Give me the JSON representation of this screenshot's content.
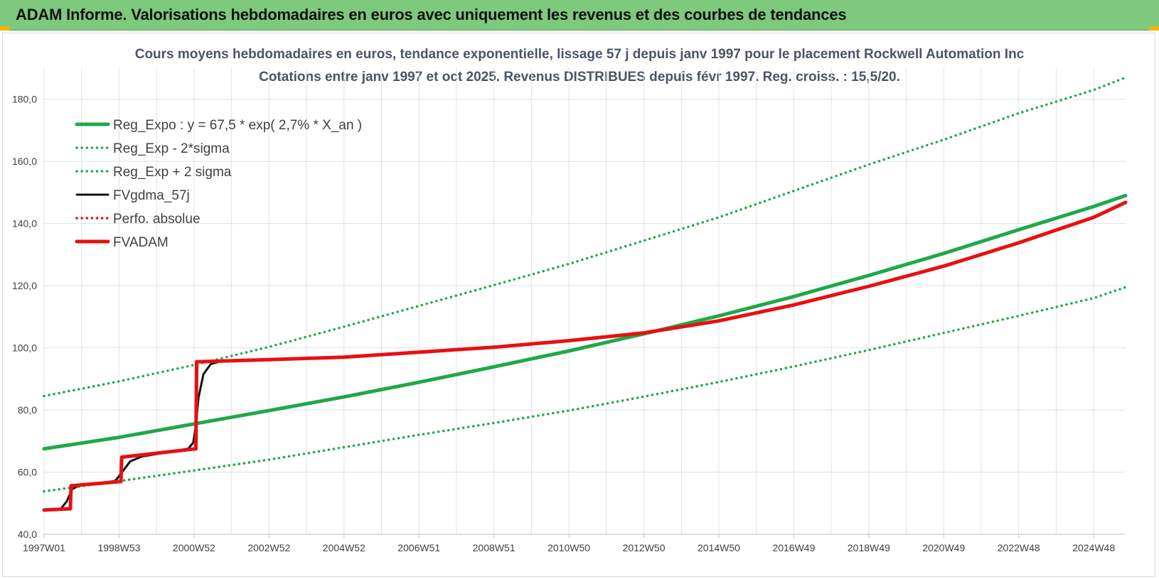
{
  "banner": {
    "title": "ADAM Informe. Valorisations hebdomadaires en euros avec uniquement les revenus et des courbes de tendances"
  },
  "colors": {
    "banner_bg": "#7dc97d",
    "trend_green": "#1fa84a",
    "black": "#111111",
    "red": "#e81010",
    "grid": "#dde3ea"
  },
  "chart_data": {
    "type": "line",
    "title": "Cours moyens hebdomadaires en euros, tendance exponentielle, lissage 57 j depuis janv 1997 pour le placement Rockwell Automation Inc",
    "subtitle": "Cotations entre janv 1997 et oct 2025. Revenus DISTRIBUES depuis févr 1997. Reg. croiss. : 15,5/20.",
    "xlabel": "",
    "ylabel": "",
    "ylim": [
      40,
      190
    ],
    "xlim": [
      1997.0,
      2025.85
    ],
    "yticks": [
      40,
      60,
      80,
      100,
      120,
      140,
      160,
      180
    ],
    "ytick_labels": [
      "40,0",
      "60,0",
      "80,0",
      "100,0",
      "120,0",
      "140,0",
      "160,0",
      "180,0"
    ],
    "xticks": [
      1997.0,
      1999.0,
      2001.0,
      2003.0,
      2005.0,
      2007.0,
      2009.0,
      2011.0,
      2013.0,
      2015.0,
      2017.0,
      2019.0,
      2021.0,
      2023.0,
      2025.0
    ],
    "xtick_labels": [
      "1997W01",
      "1998W53",
      "2000W52",
      "2002W52",
      "2004W52",
      "2006W51",
      "2008W51",
      "2010W50",
      "2012W50",
      "2014W50",
      "2016W49",
      "2018W49",
      "2020W49",
      "2022W48",
      "2024W48"
    ],
    "grid": true,
    "legend_position": "top-left",
    "series": [
      {
        "name": "Reg_Expo : y = 67,5 * exp( 2,7% *  X_an )",
        "style": "solid-thick",
        "color": "#1fa84a",
        "x": [
          1997.0,
          1999.0,
          2001.0,
          2003.0,
          2005.0,
          2007.0,
          2009.0,
          2011.0,
          2013.0,
          2015.0,
          2017.0,
          2019.0,
          2021.0,
          2023.0,
          2025.0,
          2025.85
        ],
        "y": [
          67.5,
          71.2,
          75.5,
          79.8,
          84.2,
          88.9,
          93.9,
          99.0,
          104.5,
          110.3,
          116.5,
          123.3,
          130.4,
          138.0,
          145.5,
          149.0
        ]
      },
      {
        "name": "Reg_Exp - 2*sigma",
        "style": "dotted",
        "color": "#1fa84a",
        "x": [
          1997.0,
          1999.0,
          2001.0,
          2003.0,
          2005.0,
          2007.0,
          2009.0,
          2011.0,
          2013.0,
          2015.0,
          2017.0,
          2019.0,
          2021.0,
          2023.0,
          2025.0,
          2025.85
        ],
        "y": [
          53.8,
          57.1,
          60.5,
          64.0,
          68.0,
          72.0,
          75.8,
          79.8,
          84.3,
          89.0,
          94.0,
          99.3,
          104.8,
          110.3,
          116.0,
          119.5
        ]
      },
      {
        "name": "Reg_Exp + 2 sigma",
        "style": "dotted",
        "color": "#1fa84a",
        "x": [
          1997.0,
          1999.0,
          2001.0,
          2003.0,
          2005.0,
          2007.0,
          2009.0,
          2011.0,
          2013.0,
          2015.0,
          2017.0,
          2019.0,
          2021.0,
          2023.0,
          2025.0,
          2025.85
        ],
        "y": [
          84.5,
          89.2,
          94.5,
          100.3,
          106.8,
          113.5,
          120.2,
          127.0,
          134.5,
          142.0,
          150.5,
          159.0,
          167.0,
          175.5,
          183.0,
          187.0
        ]
      },
      {
        "name": "FVgdma_57j",
        "style": "solid",
        "color": "#111111",
        "x": [
          1997.0,
          1997.45,
          1997.6,
          1997.75,
          1997.95,
          1998.5,
          1998.9,
          1999.05,
          1999.3,
          1999.6,
          2000.0,
          2000.5,
          2000.85,
          2000.98,
          2001.05,
          2001.12,
          2001.25,
          2001.45,
          2001.7,
          2002.0
        ],
        "y": [
          47.8,
          48.2,
          50.5,
          54.5,
          55.8,
          56.4,
          57.2,
          59.5,
          63.5,
          65.0,
          65.8,
          66.8,
          67.6,
          69.5,
          75.0,
          84.0,
          91.5,
          94.8,
          95.6,
          95.8
        ]
      },
      {
        "name": "Perfo. absolue",
        "style": "dotted",
        "color": "#e81010",
        "x": [
          1997.0,
          1997.7,
          1997.72,
          1999.05,
          1999.07,
          2001.05,
          2001.07,
          2003.0,
          2005.0,
          2007.0,
          2009.0,
          2011.0,
          2013.0,
          2015.0,
          2017.0,
          2019.0,
          2021.0,
          2023.0,
          2025.0,
          2025.85
        ],
        "y": [
          47.8,
          48.2,
          55.6,
          57.0,
          64.8,
          67.5,
          95.5,
          96.2,
          97.0,
          98.6,
          100.2,
          102.3,
          104.8,
          108.7,
          113.8,
          119.8,
          126.3,
          133.8,
          142.0,
          146.8
        ]
      },
      {
        "name": "FVADAM",
        "style": "solid-thick",
        "color": "#e81010",
        "x": [
          1997.0,
          1997.7,
          1997.72,
          1999.05,
          1999.07,
          2001.05,
          2001.07,
          2003.0,
          2005.0,
          2007.0,
          2009.0,
          2011.0,
          2013.0,
          2015.0,
          2017.0,
          2019.0,
          2021.0,
          2023.0,
          2025.0,
          2025.85
        ],
        "y": [
          47.8,
          48.2,
          55.6,
          57.0,
          64.8,
          67.5,
          95.5,
          96.2,
          97.0,
          98.6,
          100.2,
          102.3,
          104.8,
          108.7,
          113.8,
          119.8,
          126.3,
          133.8,
          142.0,
          146.8
        ]
      }
    ]
  }
}
